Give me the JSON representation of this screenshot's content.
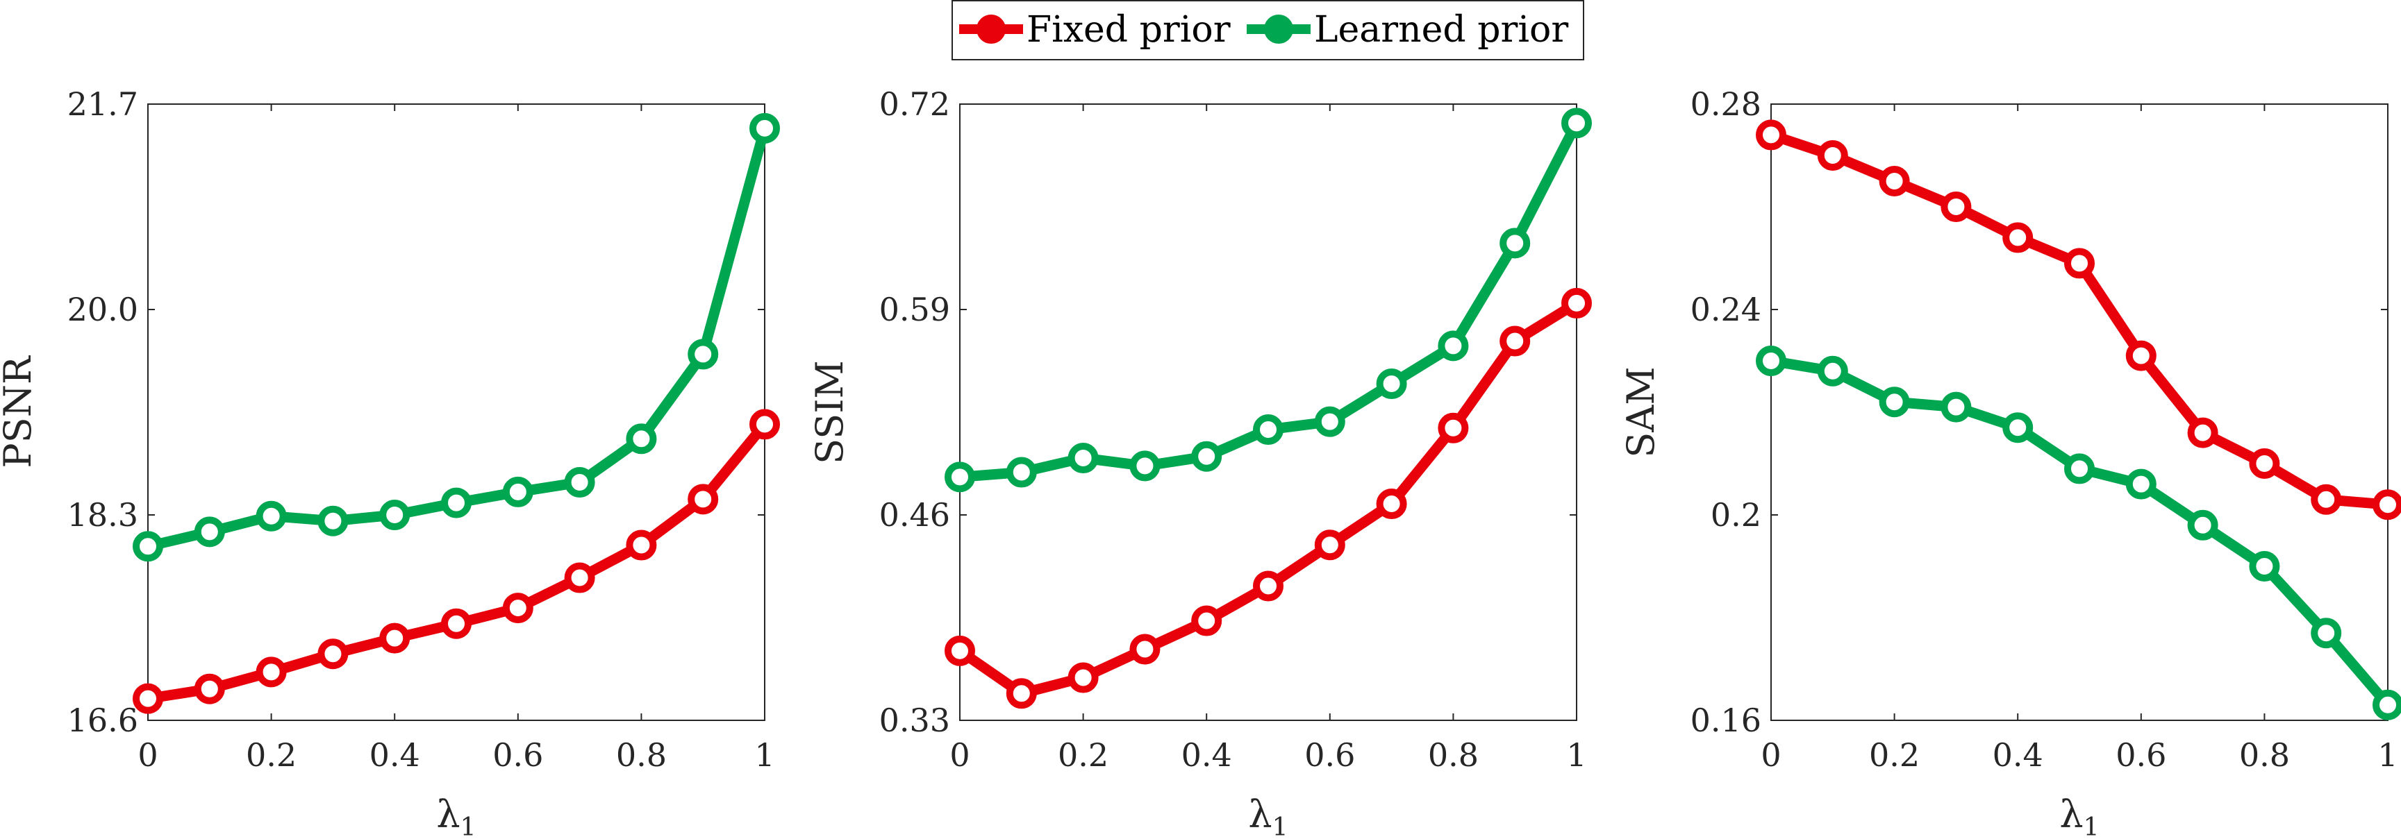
{
  "legend": {
    "entries": [
      {
        "label": "Fixed prior",
        "color": "#e8000b"
      },
      {
        "label": "Learned prior",
        "color": "#00a650"
      }
    ]
  },
  "chart_data": [
    {
      "type": "line",
      "ylabel": "PSNR",
      "xlabel": "λ1",
      "xlim": [
        0,
        1
      ],
      "ylim": [
        16.6,
        21.7
      ],
      "xticks": [
        "0",
        "0.2",
        "0.4",
        "0.6",
        "0.8",
        "1"
      ],
      "yticks": [
        "16.6",
        "18.3",
        "20.0",
        "21.7"
      ],
      "x": [
        0,
        0.1,
        0.2,
        0.3,
        0.4,
        0.5,
        0.6,
        0.7,
        0.8,
        0.9,
        1.0
      ],
      "series": [
        {
          "name": "Fixed prior",
          "color": "#e8000b",
          "values": [
            16.78,
            16.86,
            17.0,
            17.15,
            17.28,
            17.4,
            17.53,
            17.78,
            18.05,
            18.43,
            19.05
          ]
        },
        {
          "name": "Learned prior",
          "color": "#00a650",
          "values": [
            18.04,
            18.16,
            18.29,
            18.25,
            18.3,
            18.4,
            18.49,
            18.57,
            18.93,
            19.63,
            21.5
          ]
        }
      ]
    },
    {
      "type": "line",
      "ylabel": "SSIM",
      "xlabel": "λ1",
      "xlim": [
        0,
        1
      ],
      "ylim": [
        0.33,
        0.72
      ],
      "xticks": [
        "0",
        "0.2",
        "0.4",
        "0.6",
        "0.8",
        "1"
      ],
      "yticks": [
        "0.33",
        "0.46",
        "0.59",
        "0.72"
      ],
      "x": [
        0,
        0.1,
        0.2,
        0.3,
        0.4,
        0.5,
        0.6,
        0.7,
        0.8,
        0.9,
        1.0
      ],
      "series": [
        {
          "name": "Fixed prior",
          "color": "#e8000b",
          "values": [
            0.374,
            0.347,
            0.357,
            0.375,
            0.393,
            0.415,
            0.441,
            0.467,
            0.515,
            0.57,
            0.594
          ]
        },
        {
          "name": "Learned prior",
          "color": "#00a650",
          "values": [
            0.484,
            0.487,
            0.496,
            0.491,
            0.497,
            0.514,
            0.519,
            0.543,
            0.567,
            0.632,
            0.708
          ]
        }
      ]
    },
    {
      "type": "line",
      "ylabel": "SAM",
      "xlabel": "λ1",
      "xlim": [
        0,
        1
      ],
      "ylim": [
        0.16,
        0.28
      ],
      "xticks": [
        "0",
        "0.2",
        "0.4",
        "0.6",
        "0.8",
        "1"
      ],
      "yticks": [
        "0.16",
        "0.2",
        "0.24",
        "0.28"
      ],
      "x": [
        0,
        0.1,
        0.2,
        0.3,
        0.4,
        0.5,
        0.6,
        0.7,
        0.8,
        0.9,
        1.0
      ],
      "series": [
        {
          "name": "Fixed prior",
          "color": "#e8000b",
          "values": [
            0.274,
            0.27,
            0.265,
            0.26,
            0.254,
            0.249,
            0.231,
            0.216,
            0.21,
            0.203,
            0.202
          ]
        },
        {
          "name": "Learned prior",
          "color": "#00a650",
          "values": [
            0.23,
            0.228,
            0.222,
            0.221,
            0.217,
            0.209,
            0.206,
            0.198,
            0.19,
            0.177,
            0.163
          ]
        }
      ]
    }
  ]
}
